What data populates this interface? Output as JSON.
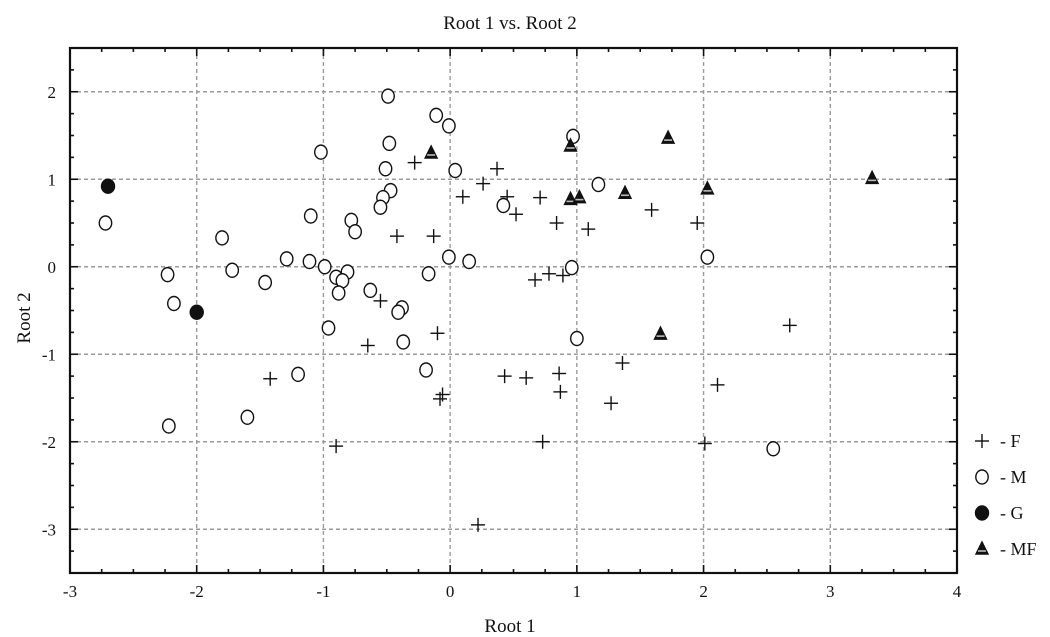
{
  "chart_data": {
    "type": "scatter",
    "title": "Root 1 vs. Root 2",
    "xlabel": "Root 1",
    "ylabel": "Root 2",
    "xlim": [
      -3,
      4
    ],
    "ylim": [
      -3.5,
      2.5
    ],
    "xticks": [
      -3,
      -2,
      -1,
      0,
      1,
      2,
      3,
      4
    ],
    "yticks": [
      -3,
      -2,
      -1,
      0,
      1,
      2
    ],
    "xtick_labels": [
      "-3",
      "-2",
      "-1",
      "0",
      "1",
      "2",
      "3",
      "4"
    ],
    "ytick_labels": [
      "-3",
      "-2",
      "-1",
      "0",
      "1",
      "2"
    ],
    "grid": true,
    "legend_position": "right-bottom-outside",
    "series": [
      {
        "name": "- F",
        "marker": "plus",
        "color": "#111111",
        "x": [
          -0.28,
          0.26,
          0.37,
          0.45,
          0.1,
          0.71,
          0.52,
          -0.42,
          -0.13,
          1.09,
          0.84,
          1.59,
          1.95,
          0.78,
          0.67,
          0.89,
          -0.1,
          -0.65,
          -0.55,
          -1.42,
          0.43,
          0.6,
          0.86,
          0.87,
          1.36,
          1.27,
          -0.06,
          -0.08,
          2.11,
          2.68,
          0.73,
          2.01,
          -0.9,
          0.22
        ],
        "y": [
          1.19,
          0.95,
          1.12,
          0.8,
          0.8,
          0.79,
          0.6,
          0.35,
          0.35,
          0.43,
          0.5,
          0.65,
          0.5,
          -0.08,
          -0.15,
          -0.1,
          -0.76,
          -0.9,
          -0.39,
          -1.28,
          -1.25,
          -1.27,
          -1.22,
          -1.43,
          -1.1,
          -1.56,
          -1.46,
          -1.51,
          -1.35,
          -0.67,
          -2.0,
          -2.02,
          -2.05,
          -2.95
        ]
      },
      {
        "name": "- M",
        "marker": "circle-open",
        "color": "#111111",
        "x": [
          -0.49,
          -0.11,
          -0.01,
          -0.48,
          -1.02,
          -0.51,
          0.04,
          -0.47,
          -0.53,
          -0.55,
          -1.1,
          -0.78,
          -0.75,
          -2.72,
          -1.8,
          -0.99,
          0.42,
          1.17,
          0.97,
          -2.23,
          -1.72,
          -1.29,
          -1.11,
          -0.81,
          -0.9,
          -0.85,
          -0.63,
          -0.88,
          -1.46,
          -0.17,
          -0.38,
          -0.41,
          -0.96,
          -0.37,
          -2.18,
          0.15,
          -0.01,
          0.96,
          2.03,
          1.0,
          -0.19,
          -1.2,
          -1.6,
          -2.22,
          2.55
        ],
        "y": [
          1.95,
          1.73,
          1.61,
          1.41,
          1.31,
          1.12,
          1.1,
          0.87,
          0.79,
          0.68,
          0.58,
          0.53,
          0.4,
          0.5,
          0.33,
          0.0,
          0.7,
          0.94,
          1.49,
          -0.09,
          -0.04,
          0.09,
          0.06,
          -0.06,
          -0.12,
          -0.16,
          -0.27,
          -0.3,
          -0.18,
          -0.08,
          -0.47,
          -0.52,
          -0.7,
          -0.86,
          -0.42,
          0.06,
          0.11,
          -0.01,
          0.11,
          -0.82,
          -1.18,
          -1.23,
          -1.72,
          -1.82,
          -2.08
        ]
      },
      {
        "name": "- G",
        "marker": "circle-filled",
        "color": "#111111",
        "x": [
          -2.7,
          -2.0
        ],
        "y": [
          0.92,
          -0.52
        ]
      },
      {
        "name": "- MF",
        "marker": "triangle",
        "color": "#111111",
        "x": [
          -0.15,
          0.95,
          0.95,
          1.02,
          1.72,
          1.38,
          2.03,
          3.33,
          1.66
        ],
        "y": [
          1.3,
          1.38,
          0.77,
          0.79,
          1.47,
          0.84,
          0.89,
          1.01,
          -0.77
        ]
      }
    ]
  }
}
